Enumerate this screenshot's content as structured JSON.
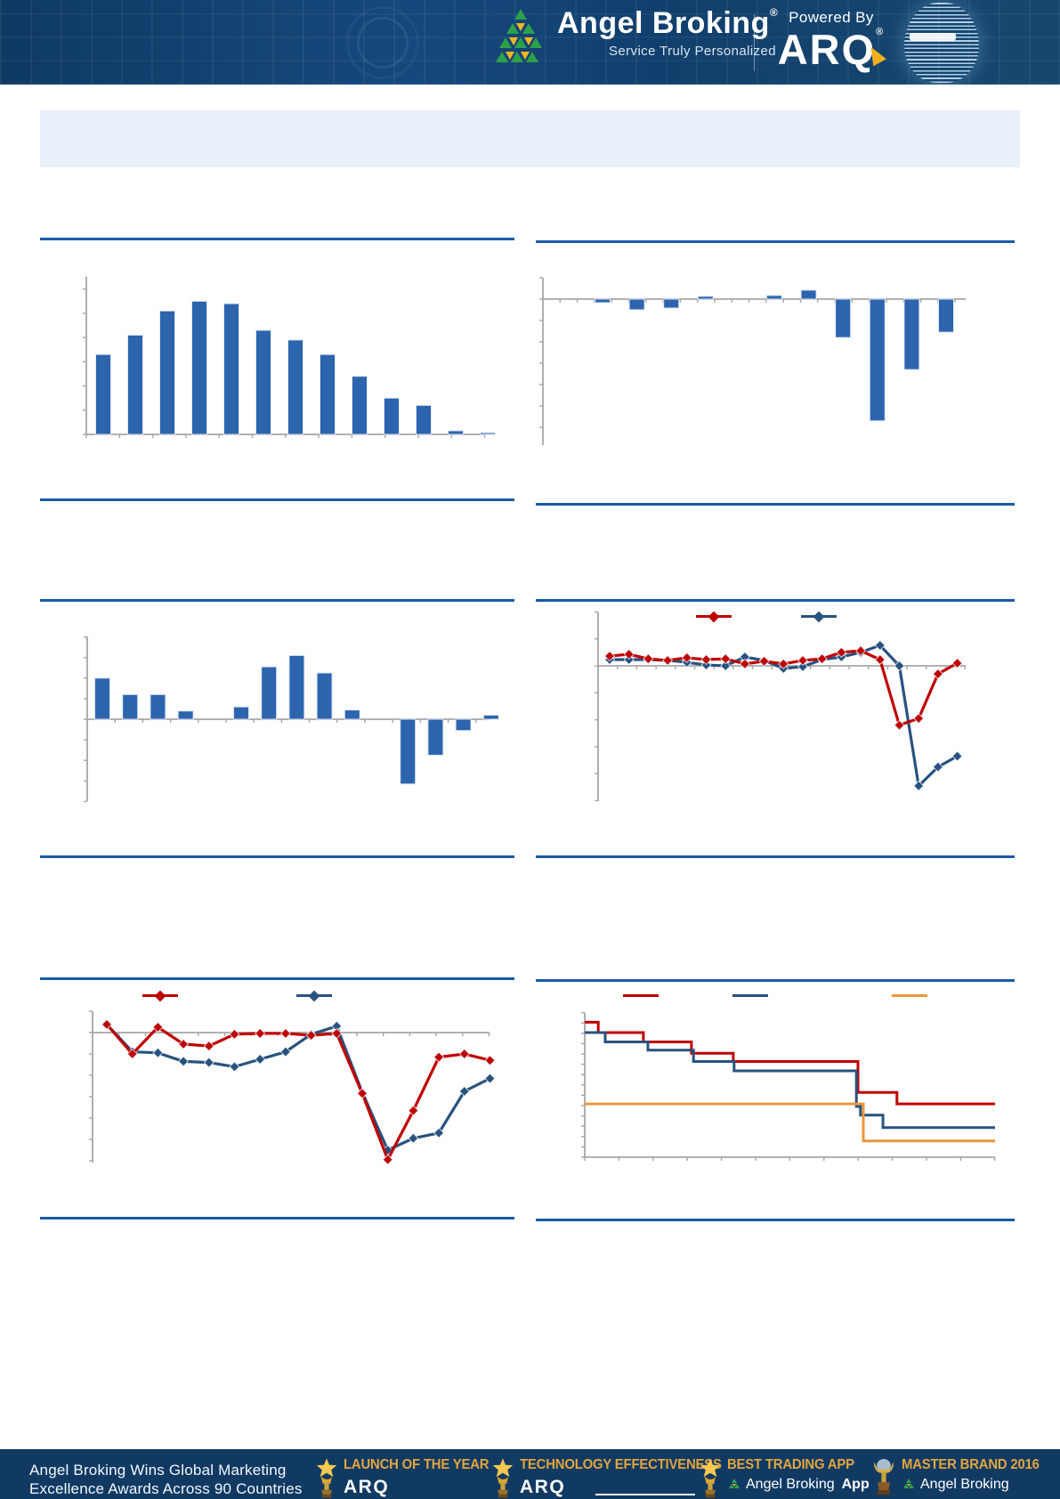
{
  "header": {
    "brand": {
      "name": "Angel Broking",
      "registered_mark": "®",
      "tagline": "Service Truly Personalized"
    },
    "powered_by": {
      "label": "Powered By",
      "logo_text": "ARQ",
      "registered_mark": "®"
    }
  },
  "title_band": {
    "text": ""
  },
  "notes": "No text labels are visible inside the chart areas of the source image: chart titles, axis tick labels, legend labels and source lines are blank/white. Values below are estimated in y-axis tick-interval units read from the unlabeled gridticks.",
  "colors": {
    "header_navy": "#113f6d",
    "footer_navy": "#113a63",
    "rule_blue": "#1a5aa6",
    "title_band": "#e9eff8",
    "axis_gray": "#a6a6a6",
    "bar_blue": "#2d64ae",
    "series_red": "#c00000",
    "series_navy": "#28527f",
    "series_orange": "#e9973d",
    "accent_gold": "#e2a53d",
    "logo_green": "#2ea04c",
    "logo_yellow": "#f0b51f"
  },
  "chart_data": [
    {
      "id": "exhibit-1",
      "type": "bar",
      "title": "",
      "axis_labels_visible": false,
      "value_unit": "y-axis tick intervals",
      "values": [
        3.3,
        4.1,
        5.1,
        5.5,
        5.4,
        4.3,
        3.9,
        3.3,
        2.4,
        1.5,
        1.2,
        0.15,
        0.07
      ],
      "ylim": [
        0,
        6.5
      ],
      "grid": false,
      "legend": []
    },
    {
      "id": "exhibit-2",
      "type": "bar",
      "title": "",
      "axis_labels_visible": false,
      "value_unit": "y-axis tick intervals",
      "values": [
        -0.17,
        -0.5,
        -0.42,
        0.13,
        0,
        0.17,
        0.42,
        -1.8,
        -5.7,
        -3.3,
        -1.55
      ],
      "ylim": [
        -6.8,
        1
      ],
      "grid": false,
      "legend": []
    },
    {
      "id": "exhibit-3",
      "type": "bar",
      "title": "",
      "axis_labels_visible": false,
      "value_unit": "y-axis tick intervals",
      "values": [
        2.0,
        1.2,
        1.2,
        0.4,
        0,
        0.6,
        2.55,
        3.1,
        2.25,
        0.45,
        0,
        -3.15,
        -1.75,
        -0.55,
        0.2
      ],
      "ylim": [
        -4,
        4
      ],
      "grid": false,
      "legend": []
    },
    {
      "id": "exhibit-4",
      "type": "line",
      "title": "",
      "axis_labels_visible": false,
      "value_unit": "y-axis tick intervals",
      "legend_labels": [
        "",
        ""
      ],
      "series": [
        {
          "name": "series-red",
          "color": "#c00000",
          "values": [
            0.36,
            0.43,
            0.26,
            0.2,
            0.3,
            0.23,
            0.26,
            0.07,
            0.17,
            0.07,
            0.2,
            0.26,
            0.5,
            0.56,
            0.23,
            -2.2,
            -1.95,
            -0.3,
            0.1
          ]
        },
        {
          "name": "series-navy",
          "color": "#28527f",
          "values": [
            0.23,
            0.23,
            0.23,
            0.2,
            0.13,
            0.03,
            0,
            0.33,
            0.2,
            -0.1,
            -0.03,
            0.23,
            0.33,
            0.5,
            0.76,
            0,
            -4.45,
            -3.75,
            -3.35
          ]
        }
      ],
      "ylim": [
        -5,
        2
      ],
      "grid": false
    },
    {
      "id": "exhibit-5",
      "type": "line",
      "title": "",
      "axis_labels_visible": false,
      "value_unit": "y-axis tick intervals",
      "legend_labels": [
        "",
        ""
      ],
      "series": [
        {
          "name": "series-red",
          "color": "#c00000",
          "values": [
            0.38,
            -1.0,
            0.25,
            -0.54,
            -0.63,
            -0.08,
            -0.04,
            -0.04,
            -0.13,
            -0.04,
            -2.85,
            -5.95,
            -3.65,
            -1.15,
            -1.0,
            -1.3
          ]
        },
        {
          "name": "series-navy",
          "color": "#28527f",
          "values": [
            0.38,
            -0.9,
            -0.95,
            -1.35,
            -1.4,
            -1.6,
            -1.25,
            -0.9,
            -0.08,
            0.3,
            -2.8,
            -5.5,
            -4.95,
            -4.7,
            -2.75,
            -2.15
          ]
        }
      ],
      "ylim": [
        -6.5,
        1
      ],
      "grid": false
    },
    {
      "id": "exhibit-6",
      "type": "step",
      "title": "",
      "axis_labels_visible": false,
      "value_unit": "ticks below plot top; x normalized 0-1 across plot width",
      "legend_labels": [
        "",
        "",
        ""
      ],
      "series": [
        {
          "name": "step-red",
          "color": "#c00000",
          "points": [
            [
              0,
              0.9
            ],
            [
              0.033,
              1.9
            ],
            [
              0.143,
              2.8
            ],
            [
              0.26,
              3.9
            ],
            [
              0.362,
              4.7
            ],
            [
              0.666,
              7.7
            ],
            [
              0.761,
              8.8
            ],
            [
              1,
              8.8
            ]
          ]
        },
        {
          "name": "step-navy",
          "color": "#28527f",
          "points": [
            [
              0,
              1.9
            ],
            [
              0.05,
              2.8
            ],
            [
              0.154,
              3.6
            ],
            [
              0.265,
              4.7
            ],
            [
              0.364,
              5.6
            ],
            [
              0.662,
              9.05
            ],
            [
              0.672,
              9.9
            ],
            [
              0.727,
              11.1
            ],
            [
              1,
              11.1
            ]
          ]
        },
        {
          "name": "step-orange",
          "color": "#e9973d",
          "points": [
            [
              0,
              8.8
            ],
            [
              0.679,
              12.4
            ],
            [
              1,
              12.4
            ]
          ]
        }
      ],
      "grid": false
    }
  ],
  "footer": {
    "headline": {
      "line1": "Angel Broking Wins Global Marketing",
      "line2": "Excellence Awards Across 90 Countries"
    },
    "awards": [
      {
        "title": "LAUNCH OF THE YEAR",
        "subtitle": "ARQ",
        "suffix": ""
      },
      {
        "title": "TECHNOLOGY EFFECTIVENESS",
        "subtitle": "ARQ",
        "suffix": ""
      },
      {
        "title": "BEST TRADING APP",
        "subtitle": "Angel Broking",
        "suffix": "App"
      },
      {
        "title": "MASTER BRAND 2016",
        "subtitle": "Angel Broking",
        "suffix": ""
      }
    ]
  }
}
